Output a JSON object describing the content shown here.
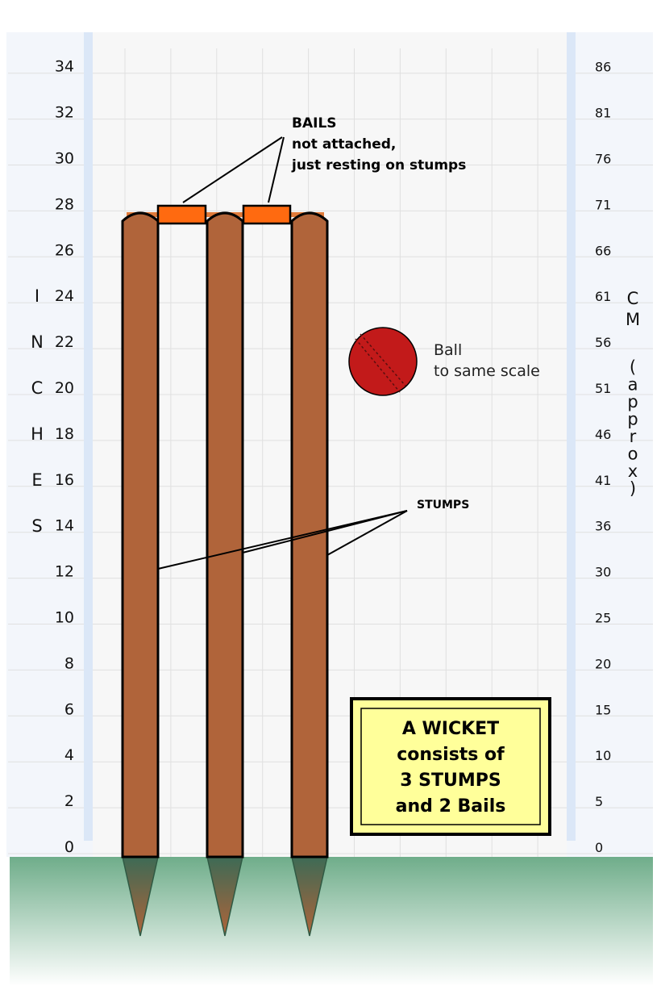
{
  "inches_axis": {
    "title": "INCHES",
    "ticks": [
      "0",
      "2",
      "4",
      "6",
      "8",
      "10",
      "12",
      "14",
      "16",
      "18",
      "20",
      "22",
      "24",
      "26",
      "28",
      "30",
      "32",
      "34"
    ]
  },
  "cm_axis": {
    "title_line1": "CM",
    "title_line2": "(approx)",
    "ticks": [
      "0",
      "5",
      "10",
      "15",
      "20",
      "25",
      "30",
      "36",
      "41",
      "46",
      "51",
      "56",
      "61",
      "66",
      "71",
      "76",
      "81",
      "86"
    ]
  },
  "labels": {
    "bails": "BAILS",
    "bails_note_1": "not attached,",
    "bails_note_2": "just resting on stumps",
    "stumps": "STUMPS",
    "ball_1": "Ball",
    "ball_2": "to same scale"
  },
  "info_box": {
    "lines": [
      "A WICKET",
      "consists of",
      "3 STUMPS",
      "and 2 Bails"
    ]
  },
  "colors": {
    "stump": "#b0643a",
    "bail": "#ff6a10",
    "ball": "#c21a1a",
    "grass_top": "#6fad8a",
    "box_fill": "#ffff9a",
    "axis_bar": "#dbe7f7",
    "grid": "#e2e2e2"
  }
}
